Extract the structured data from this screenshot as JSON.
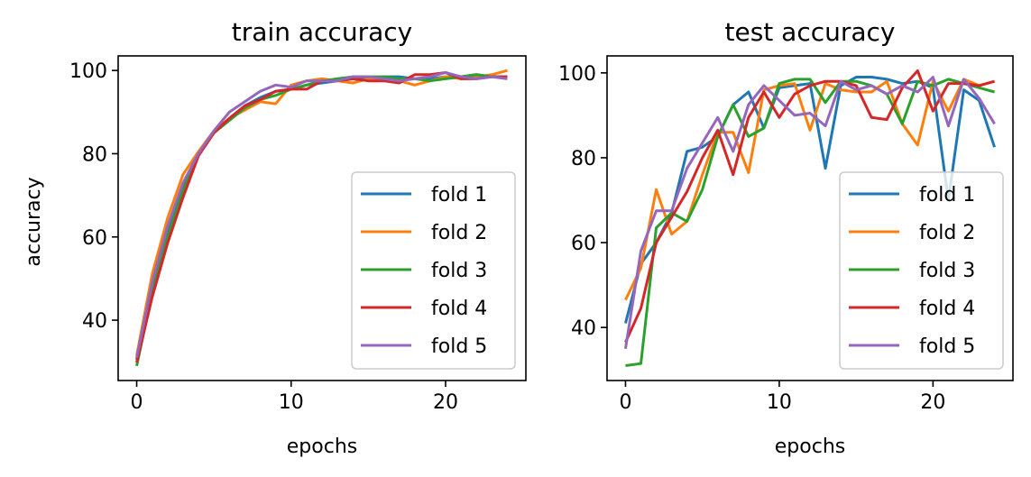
{
  "chart_data": [
    {
      "type": "line",
      "title": "train accuracy",
      "xlabel": "epochs",
      "ylabel": "accuracy",
      "xlim": [
        -1.2,
        25.2
      ],
      "ylim": [
        25.5,
        103.5
      ],
      "xticks": [
        0,
        10,
        20
      ],
      "yticks": [
        40,
        60,
        80,
        100
      ],
      "legend_position": "lower-right",
      "x": [
        0,
        1,
        2,
        3,
        4,
        5,
        6,
        7,
        8,
        9,
        10,
        11,
        12,
        13,
        14,
        15,
        16,
        17,
        18,
        19,
        20,
        21,
        22,
        23,
        24
      ],
      "series": [
        {
          "name": "fold 1",
          "color": "#1f77b4",
          "values": [
            30.5,
            47.5,
            61.0,
            72.5,
            80.0,
            85.0,
            88.5,
            91.5,
            93.5,
            95.0,
            95.5,
            96.5,
            97.0,
            97.5,
            98.0,
            98.0,
            98.5,
            98.5,
            98.0,
            98.0,
            98.5,
            98.5,
            99.0,
            98.5,
            98.5
          ]
        },
        {
          "name": "fold 2",
          "color": "#ff7f0e",
          "values": [
            31.5,
            51.0,
            64.5,
            75.0,
            80.5,
            85.5,
            88.5,
            90.5,
            92.5,
            92.0,
            96.5,
            97.5,
            98.0,
            97.5,
            97.0,
            98.0,
            98.0,
            97.5,
            96.5,
            97.5,
            98.5,
            98.0,
            98.5,
            99.0,
            100.0
          ]
        },
        {
          "name": "fold 3",
          "color": "#2ca02c",
          "values": [
            29.0,
            46.5,
            60.0,
            71.0,
            80.0,
            85.0,
            88.0,
            91.0,
            93.0,
            94.0,
            95.5,
            96.5,
            97.5,
            98.0,
            98.5,
            98.5,
            98.5,
            98.0,
            98.0,
            97.5,
            98.0,
            98.5,
            99.0,
            98.5,
            98.5
          ]
        },
        {
          "name": "fold 4",
          "color": "#d62728",
          "values": [
            29.8,
            45.5,
            58.5,
            69.5,
            79.5,
            85.0,
            88.5,
            91.5,
            93.0,
            95.0,
            95.5,
            95.5,
            97.5,
            97.5,
            98.0,
            97.5,
            97.5,
            97.0,
            99.0,
            99.0,
            99.5,
            98.0,
            98.0,
            98.5,
            98.5
          ]
        },
        {
          "name": "fold 5",
          "color": "#9467bd",
          "values": [
            31.0,
            49.0,
            62.5,
            73.0,
            80.0,
            85.5,
            90.0,
            92.5,
            95.0,
            96.5,
            96.0,
            97.5,
            97.5,
            97.5,
            98.5,
            98.5,
            98.0,
            97.5,
            98.0,
            98.5,
            99.5,
            98.5,
            98.0,
            98.5,
            98.0
          ]
        }
      ]
    },
    {
      "type": "line",
      "title": "test accuracy",
      "xlabel": "epochs",
      "ylabel": "",
      "xlim": [
        -1.2,
        25.2
      ],
      "ylim": [
        27.5,
        104.0
      ],
      "xticks": [
        0,
        10,
        20
      ],
      "yticks": [
        40,
        60,
        80,
        100
      ],
      "legend_position": "lower-right",
      "x": [
        0,
        1,
        2,
        3,
        4,
        5,
        6,
        7,
        8,
        9,
        10,
        11,
        12,
        13,
        14,
        15,
        16,
        17,
        18,
        19,
        20,
        21,
        22,
        23,
        24
      ],
      "series": [
        {
          "name": "fold 1",
          "color": "#1f77b4",
          "values": [
            41.0,
            55.0,
            60.0,
            67.0,
            81.5,
            82.5,
            85.0,
            92.5,
            95.5,
            87.0,
            96.5,
            97.0,
            97.5,
            77.5,
            97.0,
            99.0,
            99.0,
            98.5,
            97.5,
            98.0,
            96.5,
            70.0,
            96.0,
            93.5,
            82.5
          ]
        },
        {
          "name": "fold 2",
          "color": "#ff7f0e",
          "values": [
            46.5,
            54.0,
            72.5,
            62.0,
            65.0,
            76.0,
            86.0,
            86.0,
            76.5,
            96.0,
            97.0,
            97.5,
            86.5,
            97.5,
            96.0,
            95.5,
            95.5,
            98.0,
            88.0,
            83.0,
            98.0,
            91.0,
            98.5,
            97.0,
            98.0
          ]
        },
        {
          "name": "fold 3",
          "color": "#2ca02c",
          "values": [
            31.0,
            31.5,
            63.5,
            67.0,
            65.0,
            72.5,
            85.0,
            92.5,
            85.0,
            87.0,
            97.5,
            98.5,
            98.5,
            93.0,
            98.0,
            98.0,
            97.0,
            95.0,
            88.0,
            98.0,
            97.0,
            98.5,
            97.5,
            96.5,
            95.5
          ]
        },
        {
          "name": "fold 4",
          "color": "#d62728",
          "values": [
            36.5,
            44.5,
            60.0,
            66.0,
            72.0,
            80.0,
            86.5,
            76.0,
            89.5,
            95.5,
            89.5,
            95.0,
            97.0,
            98.0,
            98.0,
            97.0,
            89.5,
            89.0,
            96.5,
            100.5,
            91.0,
            97.5,
            97.5,
            97.0,
            98.0
          ]
        },
        {
          "name": "fold 5",
          "color": "#9467bd",
          "values": [
            35.0,
            58.0,
            67.5,
            67.5,
            77.5,
            83.5,
            89.5,
            81.5,
            92.5,
            97.0,
            93.5,
            90.0,
            90.5,
            87.5,
            98.0,
            96.0,
            97.0,
            95.0,
            97.0,
            95.5,
            99.0,
            87.5,
            98.5,
            94.0,
            88.0
          ]
        }
      ]
    }
  ]
}
